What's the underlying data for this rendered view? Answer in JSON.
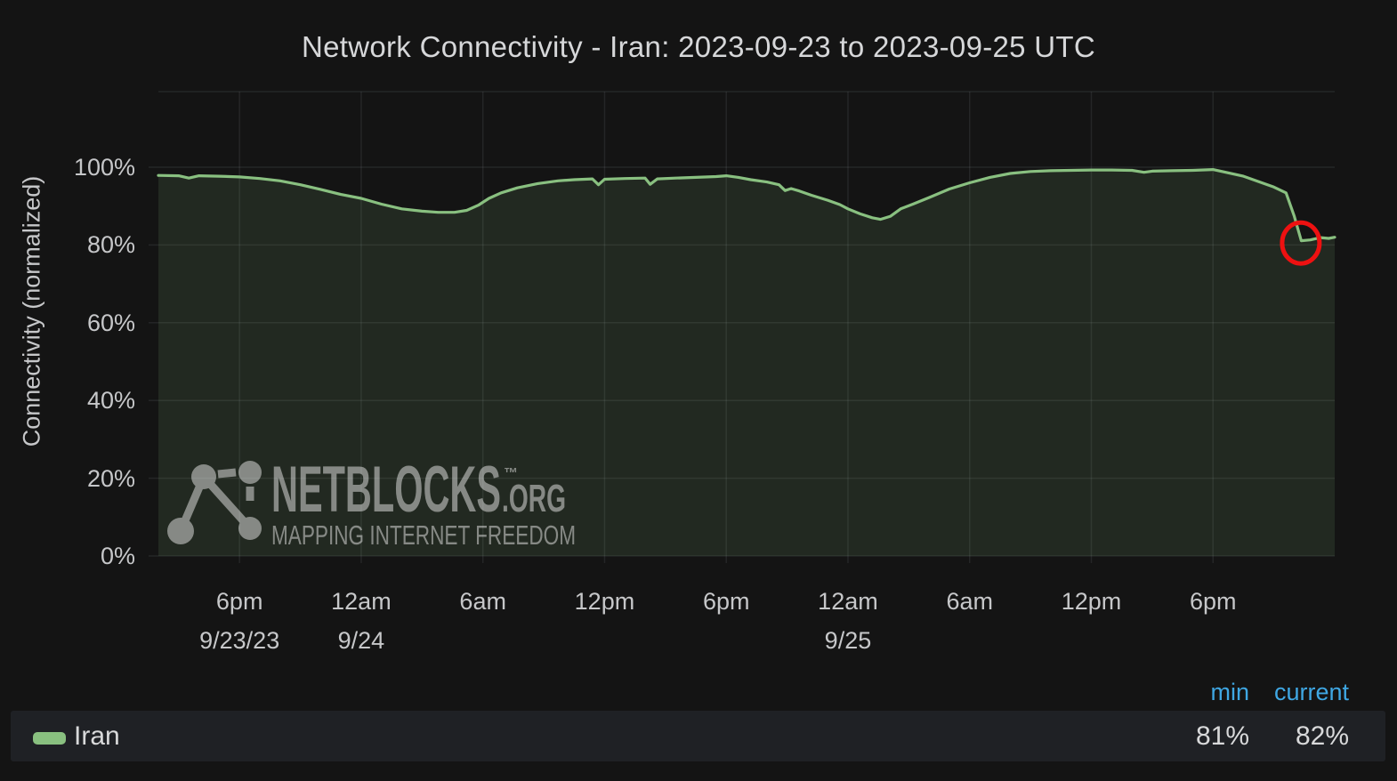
{
  "title": "Network Connectivity - Iran: 2023-09-23 to 2023-09-25 UTC",
  "y_axis": {
    "label": "Connectivity (normalized)"
  },
  "watermark": {
    "brand": "NETBLOCKS",
    "tm": "™",
    "suffix": ".ORG",
    "tagline": "MAPPING INTERNET FREEDOM"
  },
  "legend": {
    "columns": [
      "min",
      "current"
    ],
    "series": [
      {
        "name": "Iran",
        "min": "81%",
        "current": "82%"
      }
    ]
  },
  "colors": {
    "page_bg": "#141414",
    "series_green": "#89c080",
    "area_fill": "rgba(133,189,124,0.13)",
    "grid": "rgba(216,226,235,0.09)",
    "annotation_red": "#ee1111",
    "legend_header_blue": "#3fa7e3",
    "axis_text": "#c6c7c9",
    "title_text": "#d6d7d9",
    "legend_row_bg": "#1f2125",
    "watermark": "rgba(255,255,255,0.45)"
  },
  "chart_data": {
    "type": "area",
    "title": "Network Connectivity - Iran: 2023-09-23 to 2023-09-25 UTC",
    "xlabel": "",
    "ylabel": "Connectivity (normalized)",
    "x_unit": "hours since 2023-09-23 00:00 UTC",
    "x_range": [
      14,
      72
    ],
    "y_range_pct": [
      0,
      119.5
    ],
    "y_ticks_pct": [
      0,
      20,
      40,
      60,
      80,
      100
    ],
    "y_tick_labels": [
      "0%",
      "20%",
      "40%",
      "60%",
      "80%",
      "100%"
    ],
    "grid": true,
    "legend_position": "bottom",
    "x_ticks": [
      {
        "hour": 18,
        "label": "6pm",
        "date": "9/23/23"
      },
      {
        "hour": 24,
        "label": "12am",
        "date": "9/24"
      },
      {
        "hour": 30,
        "label": "6am"
      },
      {
        "hour": 36,
        "label": "12pm"
      },
      {
        "hour": 42,
        "label": "6pm"
      },
      {
        "hour": 48,
        "label": "12am",
        "date": "9/25"
      },
      {
        "hour": 54,
        "label": "6am"
      },
      {
        "hour": 60,
        "label": "12pm"
      },
      {
        "hour": 66,
        "label": "6pm"
      }
    ],
    "series": [
      {
        "name": "Iran",
        "color": "#89c080",
        "min_pct": 81,
        "current_pct": 82,
        "points": [
          [
            14.0,
            97.9
          ],
          [
            15.0,
            97.8
          ],
          [
            15.5,
            97.2
          ],
          [
            16.0,
            97.8
          ],
          [
            17.0,
            97.7
          ],
          [
            18.0,
            97.5
          ],
          [
            19.0,
            97.1
          ],
          [
            20.0,
            96.5
          ],
          [
            21.0,
            95.5
          ],
          [
            22.0,
            94.3
          ],
          [
            23.0,
            93.0
          ],
          [
            24.0,
            92.0
          ],
          [
            25.0,
            90.5
          ],
          [
            26.0,
            89.3
          ],
          [
            27.0,
            88.7
          ],
          [
            27.8,
            88.4
          ],
          [
            28.6,
            88.4
          ],
          [
            29.2,
            88.9
          ],
          [
            29.8,
            90.3
          ],
          [
            30.3,
            92.0
          ],
          [
            30.9,
            93.4
          ],
          [
            31.7,
            94.7
          ],
          [
            32.7,
            95.8
          ],
          [
            33.7,
            96.5
          ],
          [
            34.5,
            96.8
          ],
          [
            35.4,
            97.0
          ],
          [
            35.7,
            95.5
          ],
          [
            36.0,
            96.9
          ],
          [
            37.0,
            97.1
          ],
          [
            38.0,
            97.2
          ],
          [
            38.25,
            95.6
          ],
          [
            38.6,
            97.0
          ],
          [
            39.5,
            97.2
          ],
          [
            40.5,
            97.4
          ],
          [
            41.5,
            97.6
          ],
          [
            42.0,
            97.8
          ],
          [
            42.6,
            97.4
          ],
          [
            43.2,
            96.8
          ],
          [
            44.0,
            96.2
          ],
          [
            44.6,
            95.5
          ],
          [
            44.9,
            94.0
          ],
          [
            45.2,
            94.5
          ],
          [
            45.6,
            93.9
          ],
          [
            46.2,
            92.8
          ],
          [
            47.0,
            91.5
          ],
          [
            47.6,
            90.4
          ],
          [
            48.0,
            89.3
          ],
          [
            48.6,
            88.0
          ],
          [
            49.2,
            87.0
          ],
          [
            49.6,
            86.6
          ],
          [
            50.1,
            87.4
          ],
          [
            50.6,
            89.3
          ],
          [
            51.2,
            90.5
          ],
          [
            52.0,
            92.2
          ],
          [
            53.0,
            94.4
          ],
          [
            54.0,
            96.0
          ],
          [
            55.0,
            97.4
          ],
          [
            56.0,
            98.4
          ],
          [
            57.0,
            98.9
          ],
          [
            58.0,
            99.1
          ],
          [
            59.0,
            99.2
          ],
          [
            60.0,
            99.3
          ],
          [
            61.0,
            99.3
          ],
          [
            62.0,
            99.2
          ],
          [
            62.6,
            98.7
          ],
          [
            63.0,
            99.0
          ],
          [
            64.0,
            99.1
          ],
          [
            65.0,
            99.2
          ],
          [
            66.0,
            99.4
          ],
          [
            66.7,
            98.6
          ],
          [
            67.5,
            97.7
          ],
          [
            68.3,
            96.2
          ],
          [
            69.0,
            94.9
          ],
          [
            69.6,
            93.4
          ],
          [
            70.0,
            87.5
          ],
          [
            70.35,
            81.1
          ],
          [
            70.8,
            81.3
          ],
          [
            71.3,
            81.9
          ],
          [
            71.7,
            81.7
          ],
          [
            72.0,
            82.0
          ]
        ]
      }
    ],
    "annotation": {
      "type": "circle",
      "hour": 70.33,
      "value_pct": 80.5,
      "color": "#ee1111"
    }
  }
}
